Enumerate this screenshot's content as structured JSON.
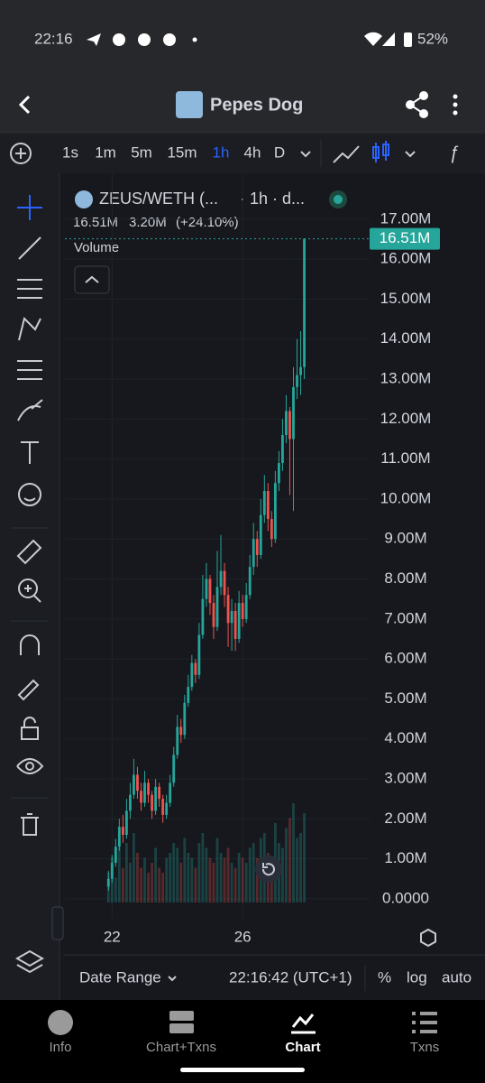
{
  "status_bar": {
    "time": "22:16",
    "battery": "52%"
  },
  "header": {
    "title": "Pepes Dog"
  },
  "toolbar": {
    "intervals": [
      "1s",
      "1m",
      "5m",
      "15m",
      "1h",
      "4h",
      "D"
    ],
    "active_index": 4
  },
  "chart_data": {
    "type": "candlestick",
    "symbol": "ZEUS/WETH (...",
    "interval": "· 1h · d...",
    "last": "16.51M",
    "change": "3.20M",
    "change_pct": "(+24.10%)",
    "volume_label": "Volume",
    "up_color": "#26a69a",
    "down_color": "#ef5350",
    "grid": true,
    "ylim": [
      -0.5,
      17.9
    ],
    "yticks": [
      {
        "value": 0,
        "label": "0.0000"
      },
      {
        "value": 1,
        "label": "1.00M"
      },
      {
        "value": 2,
        "label": "2.00M"
      },
      {
        "value": 3,
        "label": "3.00M"
      },
      {
        "value": 4,
        "label": "4.00M"
      },
      {
        "value": 5,
        "label": "5.00M"
      },
      {
        "value": 6,
        "label": "6.00M"
      },
      {
        "value": 7,
        "label": "7.00M"
      },
      {
        "value": 8,
        "label": "8.00M"
      },
      {
        "value": 9,
        "label": "9.00M"
      },
      {
        "value": 10,
        "label": "10.00M"
      },
      {
        "value": 11,
        "label": "11.00M"
      },
      {
        "value": 12,
        "label": "12.00M"
      },
      {
        "value": 13,
        "label": "13.00M"
      },
      {
        "value": 14,
        "label": "14.00M"
      },
      {
        "value": 15,
        "label": "15.00M"
      },
      {
        "value": 16,
        "label": "16.00M"
      },
      {
        "value": 17,
        "label": "17.00M"
      }
    ],
    "current_price": {
      "value": 16.51,
      "label": "16.51M"
    },
    "xlim": [
      -12,
      72
    ],
    "xticks": [
      {
        "value": 1,
        "label": "22"
      },
      {
        "value": 37,
        "label": "26"
      }
    ],
    "ohlc": [
      [
        0.3,
        0.7,
        0.2,
        0.5
      ],
      [
        0.5,
        1.1,
        0.4,
        0.9
      ],
      [
        0.9,
        1.5,
        0.8,
        1.3
      ],
      [
        1.3,
        2.0,
        1.2,
        1.8
      ],
      [
        1.8,
        2.1,
        1.4,
        1.6
      ],
      [
        1.6,
        2.5,
        1.5,
        2.2
      ],
      [
        2.2,
        2.9,
        2.0,
        2.6
      ],
      [
        2.6,
        3.5,
        2.5,
        3.1
      ],
      [
        3.1,
        3.3,
        2.5,
        2.7
      ],
      [
        2.7,
        2.9,
        2.2,
        2.4
      ],
      [
        2.4,
        3.2,
        2.3,
        2.9
      ],
      [
        2.9,
        3.0,
        2.4,
        2.6
      ],
      [
        2.6,
        2.7,
        2.0,
        2.2
      ],
      [
        2.2,
        3.0,
        2.1,
        2.8
      ],
      [
        2.8,
        2.9,
        2.3,
        2.5
      ],
      [
        2.5,
        2.6,
        1.9,
        2.1
      ],
      [
        2.1,
        2.6,
        2.0,
        2.4
      ],
      [
        2.4,
        3.1,
        2.3,
        2.9
      ],
      [
        2.9,
        3.8,
        2.8,
        3.6
      ],
      [
        3.6,
        4.6,
        3.5,
        4.3
      ],
      [
        4.3,
        4.5,
        3.9,
        4.1
      ],
      [
        4.1,
        5.1,
        4.0,
        4.9
      ],
      [
        4.9,
        5.6,
        4.8,
        5.3
      ],
      [
        5.3,
        6.1,
        5.2,
        5.9
      ],
      [
        5.9,
        6.0,
        5.4,
        5.6
      ],
      [
        5.6,
        6.9,
        5.5,
        6.6
      ],
      [
        6.6,
        8.1,
        6.5,
        7.5
      ],
      [
        7.5,
        8.4,
        7.3,
        8.0
      ],
      [
        8.0,
        8.1,
        7.1,
        7.4
      ],
      [
        7.4,
        7.6,
        6.5,
        6.8
      ],
      [
        6.8,
        8.7,
        6.7,
        7.8
      ],
      [
        7.8,
        9.1,
        7.6,
        8.2
      ],
      [
        8.2,
        8.4,
        7.3,
        7.6
      ],
      [
        7.6,
        7.8,
        6.3,
        6.9
      ],
      [
        6.9,
        7.5,
        6.2,
        7.2
      ],
      [
        7.2,
        7.4,
        6.2,
        6.5
      ],
      [
        6.5,
        7.7,
        6.4,
        7.4
      ],
      [
        7.4,
        7.6,
        6.8,
        7.0
      ],
      [
        7.0,
        7.9,
        6.9,
        7.6
      ],
      [
        7.6,
        8.6,
        7.5,
        8.3
      ],
      [
        8.3,
        9.4,
        8.1,
        9.0
      ],
      [
        9.0,
        9.2,
        8.3,
        8.6
      ],
      [
        8.6,
        10.0,
        8.5,
        9.6
      ],
      [
        9.6,
        10.6,
        9.4,
        10.2
      ],
      [
        10.2,
        10.4,
        9.2,
        9.5
      ],
      [
        9.5,
        9.7,
        8.8,
        9.0
      ],
      [
        9.0,
        10.7,
        8.9,
        10.4
      ],
      [
        10.4,
        11.2,
        10.2,
        10.9
      ],
      [
        10.9,
        12.0,
        10.7,
        11.6
      ],
      [
        11.6,
        12.6,
        11.4,
        12.2
      ],
      [
        12.2,
        12.3,
        10.1,
        11.5
      ],
      [
        11.5,
        13.3,
        9.7,
        12.8
      ],
      [
        12.8,
        14.0,
        12.5,
        13.1
      ],
      [
        13.1,
        14.2,
        12.6,
        13.3
      ],
      [
        13.3,
        16.51,
        13.0,
        16.51
      ]
    ],
    "volume": [
      30,
      45,
      25,
      55,
      35,
      60,
      40,
      70,
      50,
      35,
      45,
      30,
      40,
      55,
      35,
      30,
      45,
      50,
      60,
      55,
      40,
      65,
      50,
      45,
      35,
      60,
      70,
      55,
      45,
      40,
      65,
      50,
      45,
      55,
      40,
      35,
      50,
      45,
      40,
      55,
      60,
      45,
      65,
      70,
      50,
      45,
      80,
      60,
      55,
      75,
      85,
      100,
      65,
      70,
      90
    ]
  },
  "footer": {
    "date_range": "Date Range",
    "time": "22:16:42 (UTC+1)",
    "percent": "%",
    "log": "log",
    "auto": "auto"
  },
  "nav": [
    "Info",
    "Chart+Txns",
    "Chart",
    "Txns"
  ]
}
